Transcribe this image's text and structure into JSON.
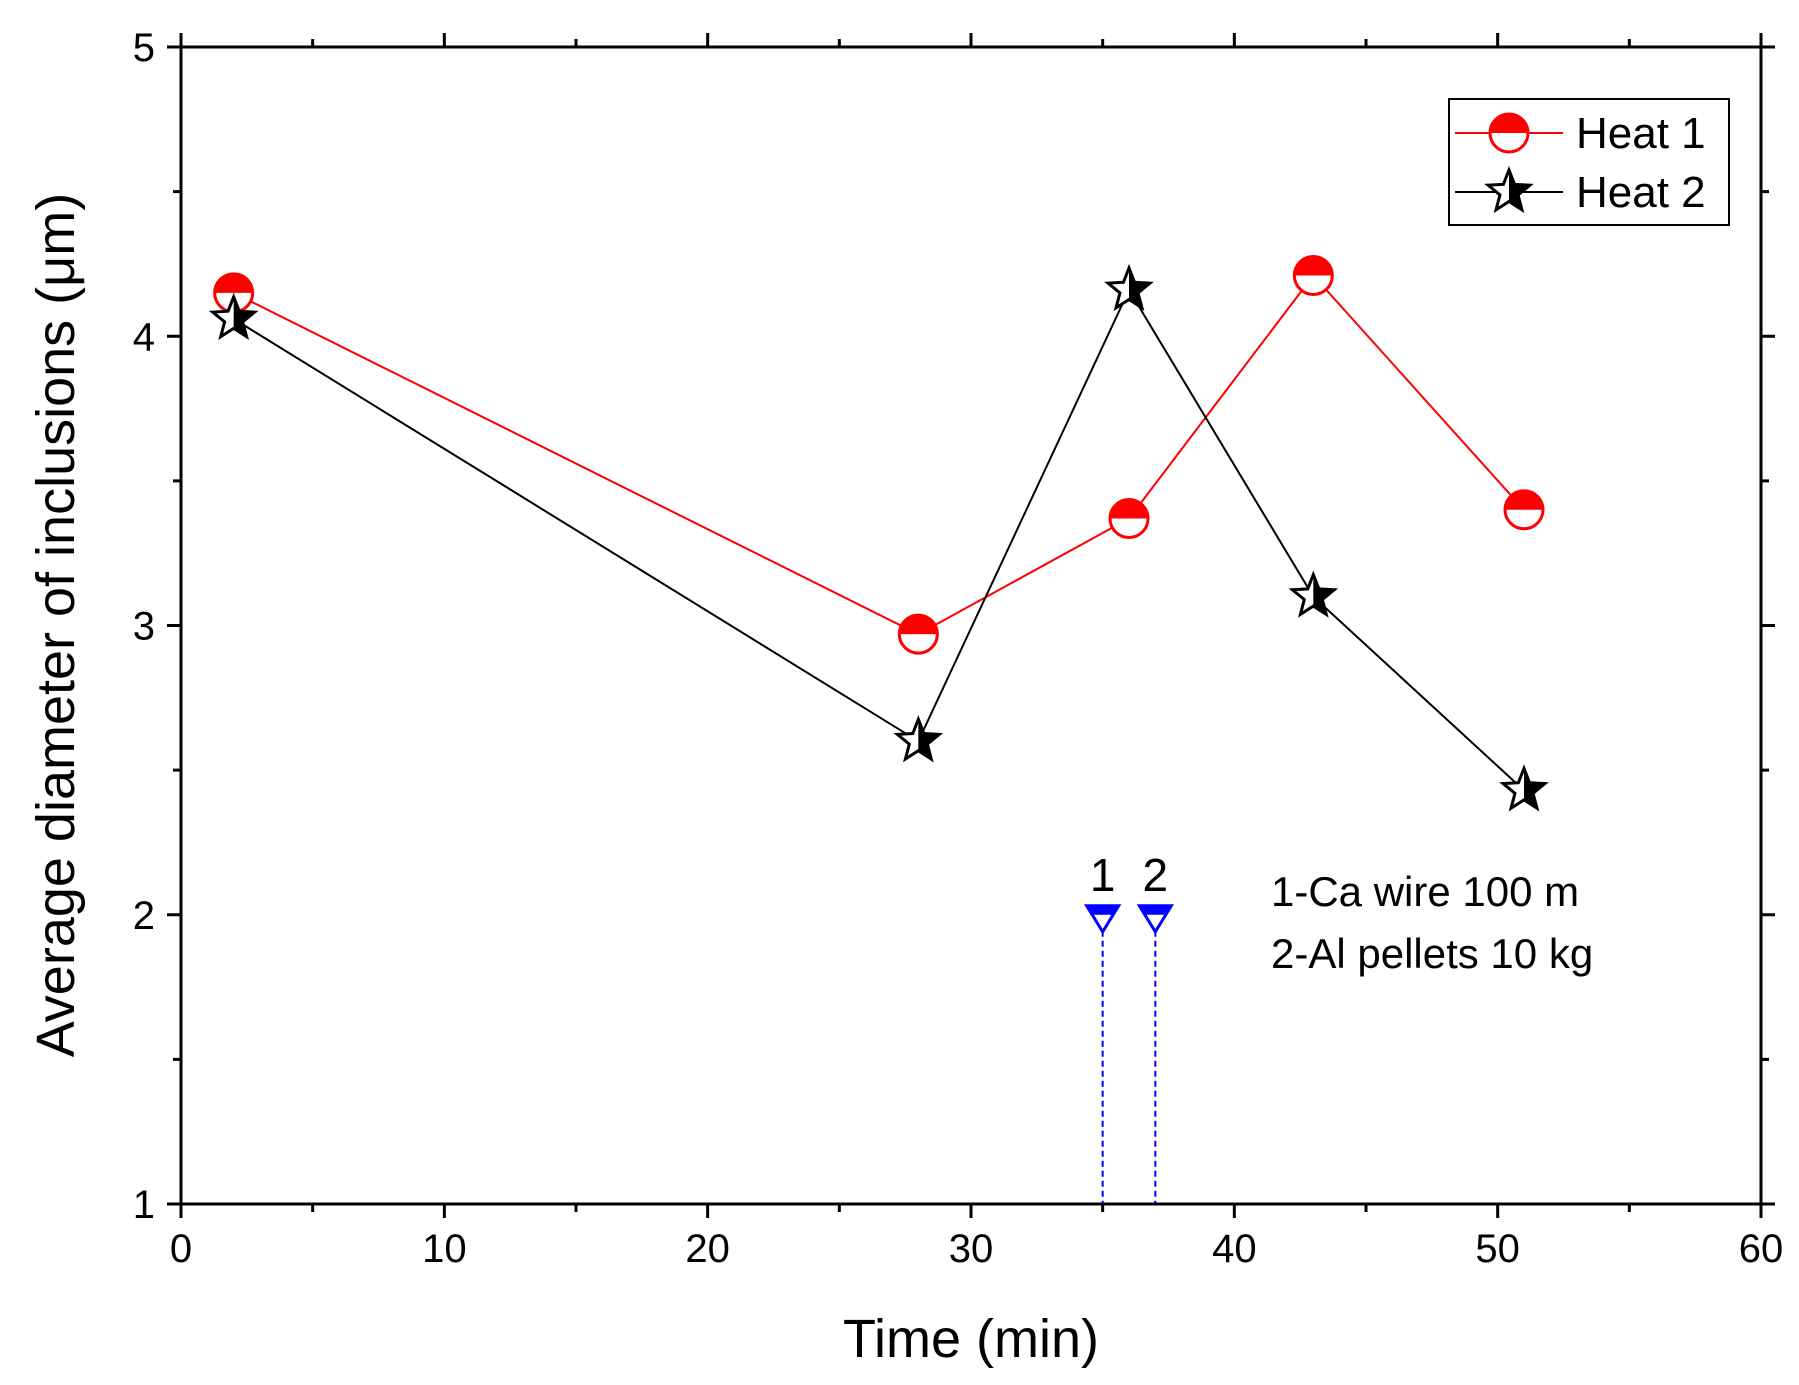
{
  "chart_data": {
    "type": "line",
    "xlabel": "Time (min)",
    "ylabel": "Average diameter of inclusions (μm)",
    "xlim": [
      0,
      60
    ],
    "ylim": [
      1,
      5
    ],
    "x_ticks": [
      "0",
      "10",
      "20",
      "30",
      "40",
      "50",
      "60"
    ],
    "y_ticks": [
      "1",
      "2",
      "3",
      "4",
      "5"
    ],
    "grid": false,
    "legend_position": "top-right",
    "series": [
      {
        "name": "Heat 1",
        "color": "#ff0000",
        "marker": "half-filled-circle",
        "x": [
          2,
          28,
          36,
          43,
          51
        ],
        "y": [
          4.15,
          2.97,
          3.37,
          4.21,
          3.4
        ]
      },
      {
        "name": "Heat 2",
        "color": "#000000",
        "marker": "half-filled-star",
        "x": [
          2,
          28,
          36,
          43,
          51
        ],
        "y": [
          4.06,
          2.6,
          4.16,
          3.1,
          2.43
        ]
      }
    ],
    "event_markers": [
      {
        "label": "1",
        "x": 35,
        "y": 2,
        "color": "#0000ff"
      },
      {
        "label": "2",
        "x": 37,
        "y": 2,
        "color": "#0000ff"
      }
    ],
    "annotations": [
      "1-Ca wire 100 m",
      "2-Al pellets 10 kg"
    ]
  }
}
